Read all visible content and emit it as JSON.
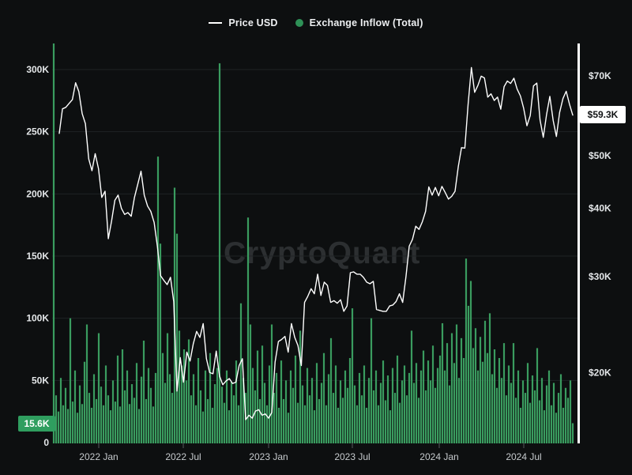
{
  "page": {
    "background": "#0d0f10"
  },
  "watermark": "CryptoQuant",
  "legend": {
    "items": [
      {
        "label": "Price USD",
        "swatch": "line",
        "color": "#ffffff"
      },
      {
        "label": "Exchange Inflow (Total)",
        "swatch": "dot",
        "color": "#2e9157"
      }
    ]
  },
  "chart_data": {
    "type": "mixed",
    "title": "",
    "x_ticks": [
      "2022 Jan",
      "2022 Jul",
      "2023 Jan",
      "2023 Jul",
      "2024 Jan",
      "2024 Jul"
    ],
    "x_range": [
      "2021 Oct",
      "2024 Oct"
    ],
    "grid": "horizontal-only",
    "legend_position": "top-center",
    "left_axis": {
      "label": "Exchange Inflow (Total)",
      "scale": "linear",
      "unit": "K BTC",
      "ticks": [
        "300K",
        "250K",
        "200K",
        "150K",
        "100K",
        "50K",
        "0"
      ],
      "tick_values": [
        300,
        250,
        200,
        150,
        100,
        50,
        0
      ],
      "range": [
        0,
        300
      ],
      "current_value": 15.6,
      "current_value_label": "15.6K"
    },
    "right_axis": {
      "label": "Price USD",
      "scale": "log",
      "unit": "USD thousands",
      "ticks": [
        "$70K",
        "$50K",
        "$40K",
        "$30K",
        "$20K"
      ],
      "tick_values": [
        70,
        50,
        40,
        30,
        20
      ],
      "current_value": 59.3,
      "current_value_label": "$59.3K"
    },
    "series": [
      {
        "name": "Price USD",
        "type": "line",
        "axis": "right",
        "color": "#ffffff",
        "unit": "USD thousands",
        "sampling": "weekly",
        "start": "2021-10-09",
        "end": "2024-10-12",
        "values": [
          54.9,
          60.9,
          61.3,
          62.3,
          63.3,
          68.0,
          65.5,
          59.7,
          57.2,
          49.3,
          46.9,
          50.4,
          47.3,
          41.9,
          43.0,
          35.2,
          37.9,
          41.4,
          42.3,
          40.0,
          39.0,
          39.3,
          38.7,
          41.9,
          44.3,
          46.8,
          42.3,
          40.4,
          39.5,
          37.7,
          34.1,
          30.1,
          29.5,
          29.0,
          29.9,
          27.0,
          18.5,
          21.3,
          19.2,
          21.8,
          21.0,
          22.6,
          23.8,
          23.2,
          24.6,
          21.2,
          20.0,
          19.9,
          21.9,
          19.7,
          19.0,
          19.3,
          19.5,
          19.1,
          19.2,
          20.6,
          21.2,
          16.4,
          16.7,
          16.5,
          17.0,
          17.1,
          16.7,
          16.8,
          16.5,
          16.9,
          20.9,
          22.8,
          23.0,
          23.3,
          21.8,
          24.6,
          23.2,
          22.4,
          20.6,
          26.9,
          27.6,
          28.5,
          27.9,
          30.3,
          27.7,
          29.3,
          28.9,
          26.9,
          27.1,
          26.8,
          27.2,
          25.9,
          26.5,
          30.5,
          30.6,
          30.3,
          30.3,
          29.9,
          29.3,
          29.1,
          29.4,
          26.1,
          26.0,
          25.9,
          25.9,
          26.5,
          26.6,
          27.0,
          27.9,
          26.9,
          30.0,
          34.1,
          35.1,
          37.1,
          36.6,
          37.8,
          39.5,
          43.8,
          42.3,
          43.7,
          42.2,
          43.9,
          42.8,
          41.6,
          42.1,
          43.0,
          47.7,
          51.7,
          51.6,
          62.0,
          72.5,
          65.3,
          67.2,
          69.9,
          69.4,
          64.0,
          64.9,
          63.1,
          64.0,
          60.8,
          66.9,
          68.5,
          67.8,
          69.3,
          66.2,
          64.3,
          61.0,
          56.7,
          59.2,
          67.1,
          67.9,
          58.1,
          54.0,
          59.5,
          64.2,
          58.0,
          54.2,
          60.0,
          63.6,
          65.6,
          62.1,
          59.3
        ]
      },
      {
        "name": "Exchange Inflow (Total)",
        "type": "bar",
        "axis": "left",
        "color": "#3a9c5f",
        "unit": "K BTC",
        "start": "2021-10",
        "end": "2024-10",
        "values": [
          330,
          38,
          25,
          52,
          30,
          44,
          27,
          100,
          33,
          58,
          24,
          46,
          31,
          65,
          95,
          40,
          28,
          55,
          35,
          88,
          45,
          30,
          62,
          38,
          26,
          50,
          33,
          70,
          29,
          75,
          42,
          58,
          31,
          47,
          36,
          64,
          27,
          53,
          82,
          35,
          60,
          44,
          29,
          56,
          230,
          160,
          72,
          48,
          88,
          55,
          40,
          205,
          168,
          90,
          62,
          75,
          50,
          83,
          38,
          55,
          30,
          68,
          42,
          25,
          58,
          35,
          72,
          28,
          47,
          60,
          305,
          45,
          32,
          58,
          26,
          49,
          38,
          66,
          30,
          112,
          52,
          40,
          181,
          95,
          60,
          42,
          74,
          35,
          78,
          48,
          30,
          62,
          95,
          40,
          56,
          28,
          66,
          35,
          50,
          24,
          58,
          44,
          70,
          32,
          90,
          46,
          30,
          60,
          38,
          52,
          26,
          64,
          35,
          48,
          72,
          30,
          55,
          84,
          40,
          62,
          28,
          50,
          36,
          58,
          44,
          68,
          108,
          46,
          30,
          56,
          38,
          62,
          28,
          52,
          100,
          42,
          58,
          30,
          48,
          66,
          34,
          54,
          26,
          60,
          40,
          70,
          32,
          50,
          62,
          38,
          56,
          90,
          48,
          64,
          36,
          58,
          74,
          42,
          66,
          50,
          78,
          44,
          60,
          70,
          96,
          58,
          80,
          46,
          88,
          64,
          95,
          52,
          84,
          68,
          148,
          110,
          130,
          76,
          92,
          58,
          85,
          65,
          98,
          72,
          104,
          55,
          75,
          44,
          68,
          52,
          80,
          38,
          62,
          48,
          80,
          36,
          58,
          28,
          50,
          40,
          64,
          32,
          54,
          42,
          76,
          34,
          52,
          26,
          46,
          58,
          30,
          48,
          24,
          40,
          55,
          28,
          44,
          36,
          50,
          15.6
        ]
      }
    ]
  }
}
